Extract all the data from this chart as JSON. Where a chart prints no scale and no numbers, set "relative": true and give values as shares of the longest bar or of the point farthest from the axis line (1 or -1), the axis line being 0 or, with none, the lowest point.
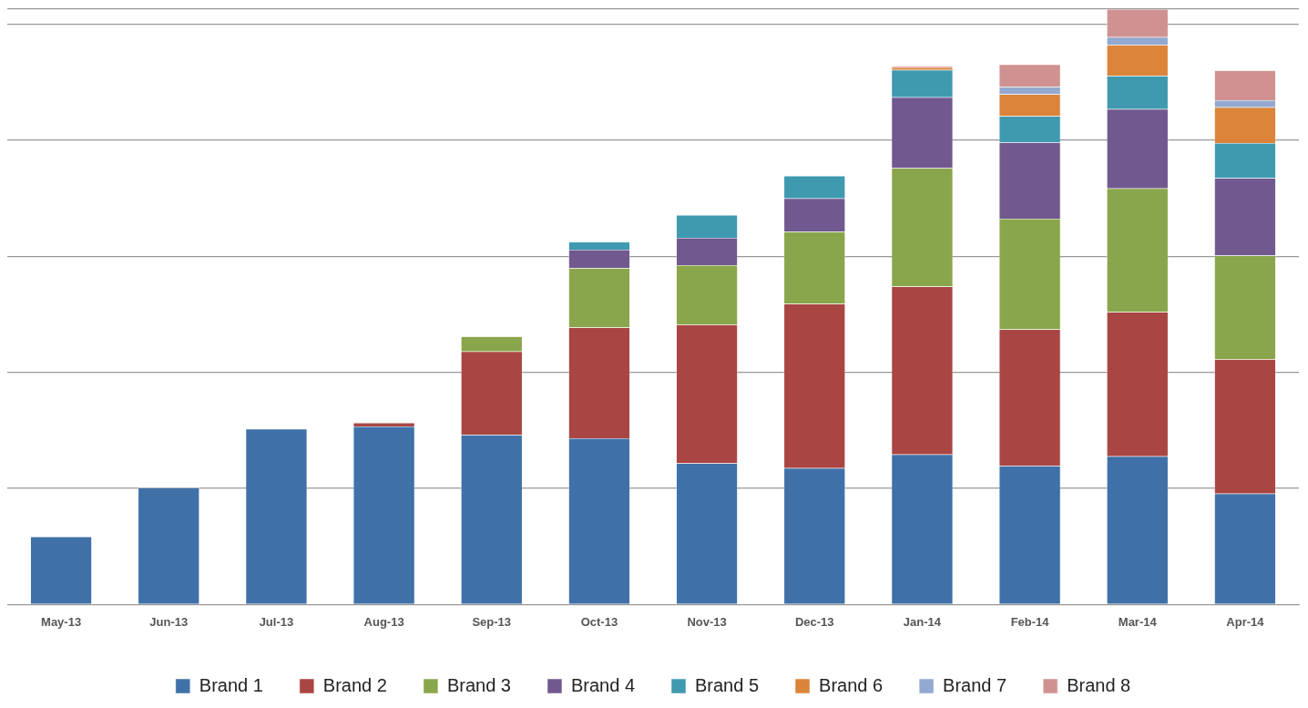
{
  "chart_data": {
    "type": "bar",
    "stacked": true,
    "relative": true,
    "grid": "y",
    "legend": "bottom",
    "categories": [
      "May-13",
      "Jun-13",
      "Jul-13",
      "Aug-13",
      "Sep-13",
      "Oct-13",
      "Nov-13",
      "Dec-13",
      "Jan-14",
      "Feb-14",
      "Mar-14",
      "Apr-14"
    ],
    "series": [
      {
        "name": "Brand 1",
        "color": "#3f71a8",
        "values": [
          0.114,
          0.196,
          0.295,
          0.299,
          0.285,
          0.279,
          0.237,
          0.229,
          0.252,
          0.233,
          0.249,
          0.186
        ]
      },
      {
        "name": "Brand 2",
        "color": "#a94643",
        "values": [
          null,
          null,
          null,
          0.006,
          0.14,
          0.186,
          0.233,
          0.276,
          0.282,
          0.229,
          0.242,
          0.226
        ]
      },
      {
        "name": "Brand 3",
        "color": "#8aa64c",
        "values": [
          null,
          null,
          null,
          null,
          0.025,
          0.1,
          0.1,
          0.121,
          0.199,
          0.186,
          0.208,
          0.174
        ]
      },
      {
        "name": "Brand 4",
        "color": "#71598f",
        "values": [
          null,
          null,
          null,
          null,
          null,
          0.031,
          0.046,
          0.056,
          0.119,
          0.128,
          0.133,
          0.13
        ]
      },
      {
        "name": "Brand 5",
        "color": "#3f9ab0",
        "values": [
          null,
          null,
          null,
          null,
          null,
          0.013,
          0.038,
          0.038,
          0.046,
          0.044,
          0.056,
          0.059
        ]
      },
      {
        "name": "Brand 6",
        "color": "#db843a",
        "values": [
          null,
          null,
          null,
          null,
          null,
          null,
          null,
          null,
          0.004,
          0.037,
          0.052,
          0.06
        ]
      },
      {
        "name": "Brand 7",
        "color": "#93a9cf",
        "values": [
          null,
          null,
          null,
          null,
          null,
          null,
          null,
          null,
          null,
          0.012,
          0.013,
          0.012
        ]
      },
      {
        "name": "Brand 8",
        "color": "#d09290",
        "values": [
          null,
          null,
          null,
          null,
          null,
          null,
          null,
          null,
          0.002,
          0.038,
          0.047,
          0.05
        ]
      }
    ]
  }
}
